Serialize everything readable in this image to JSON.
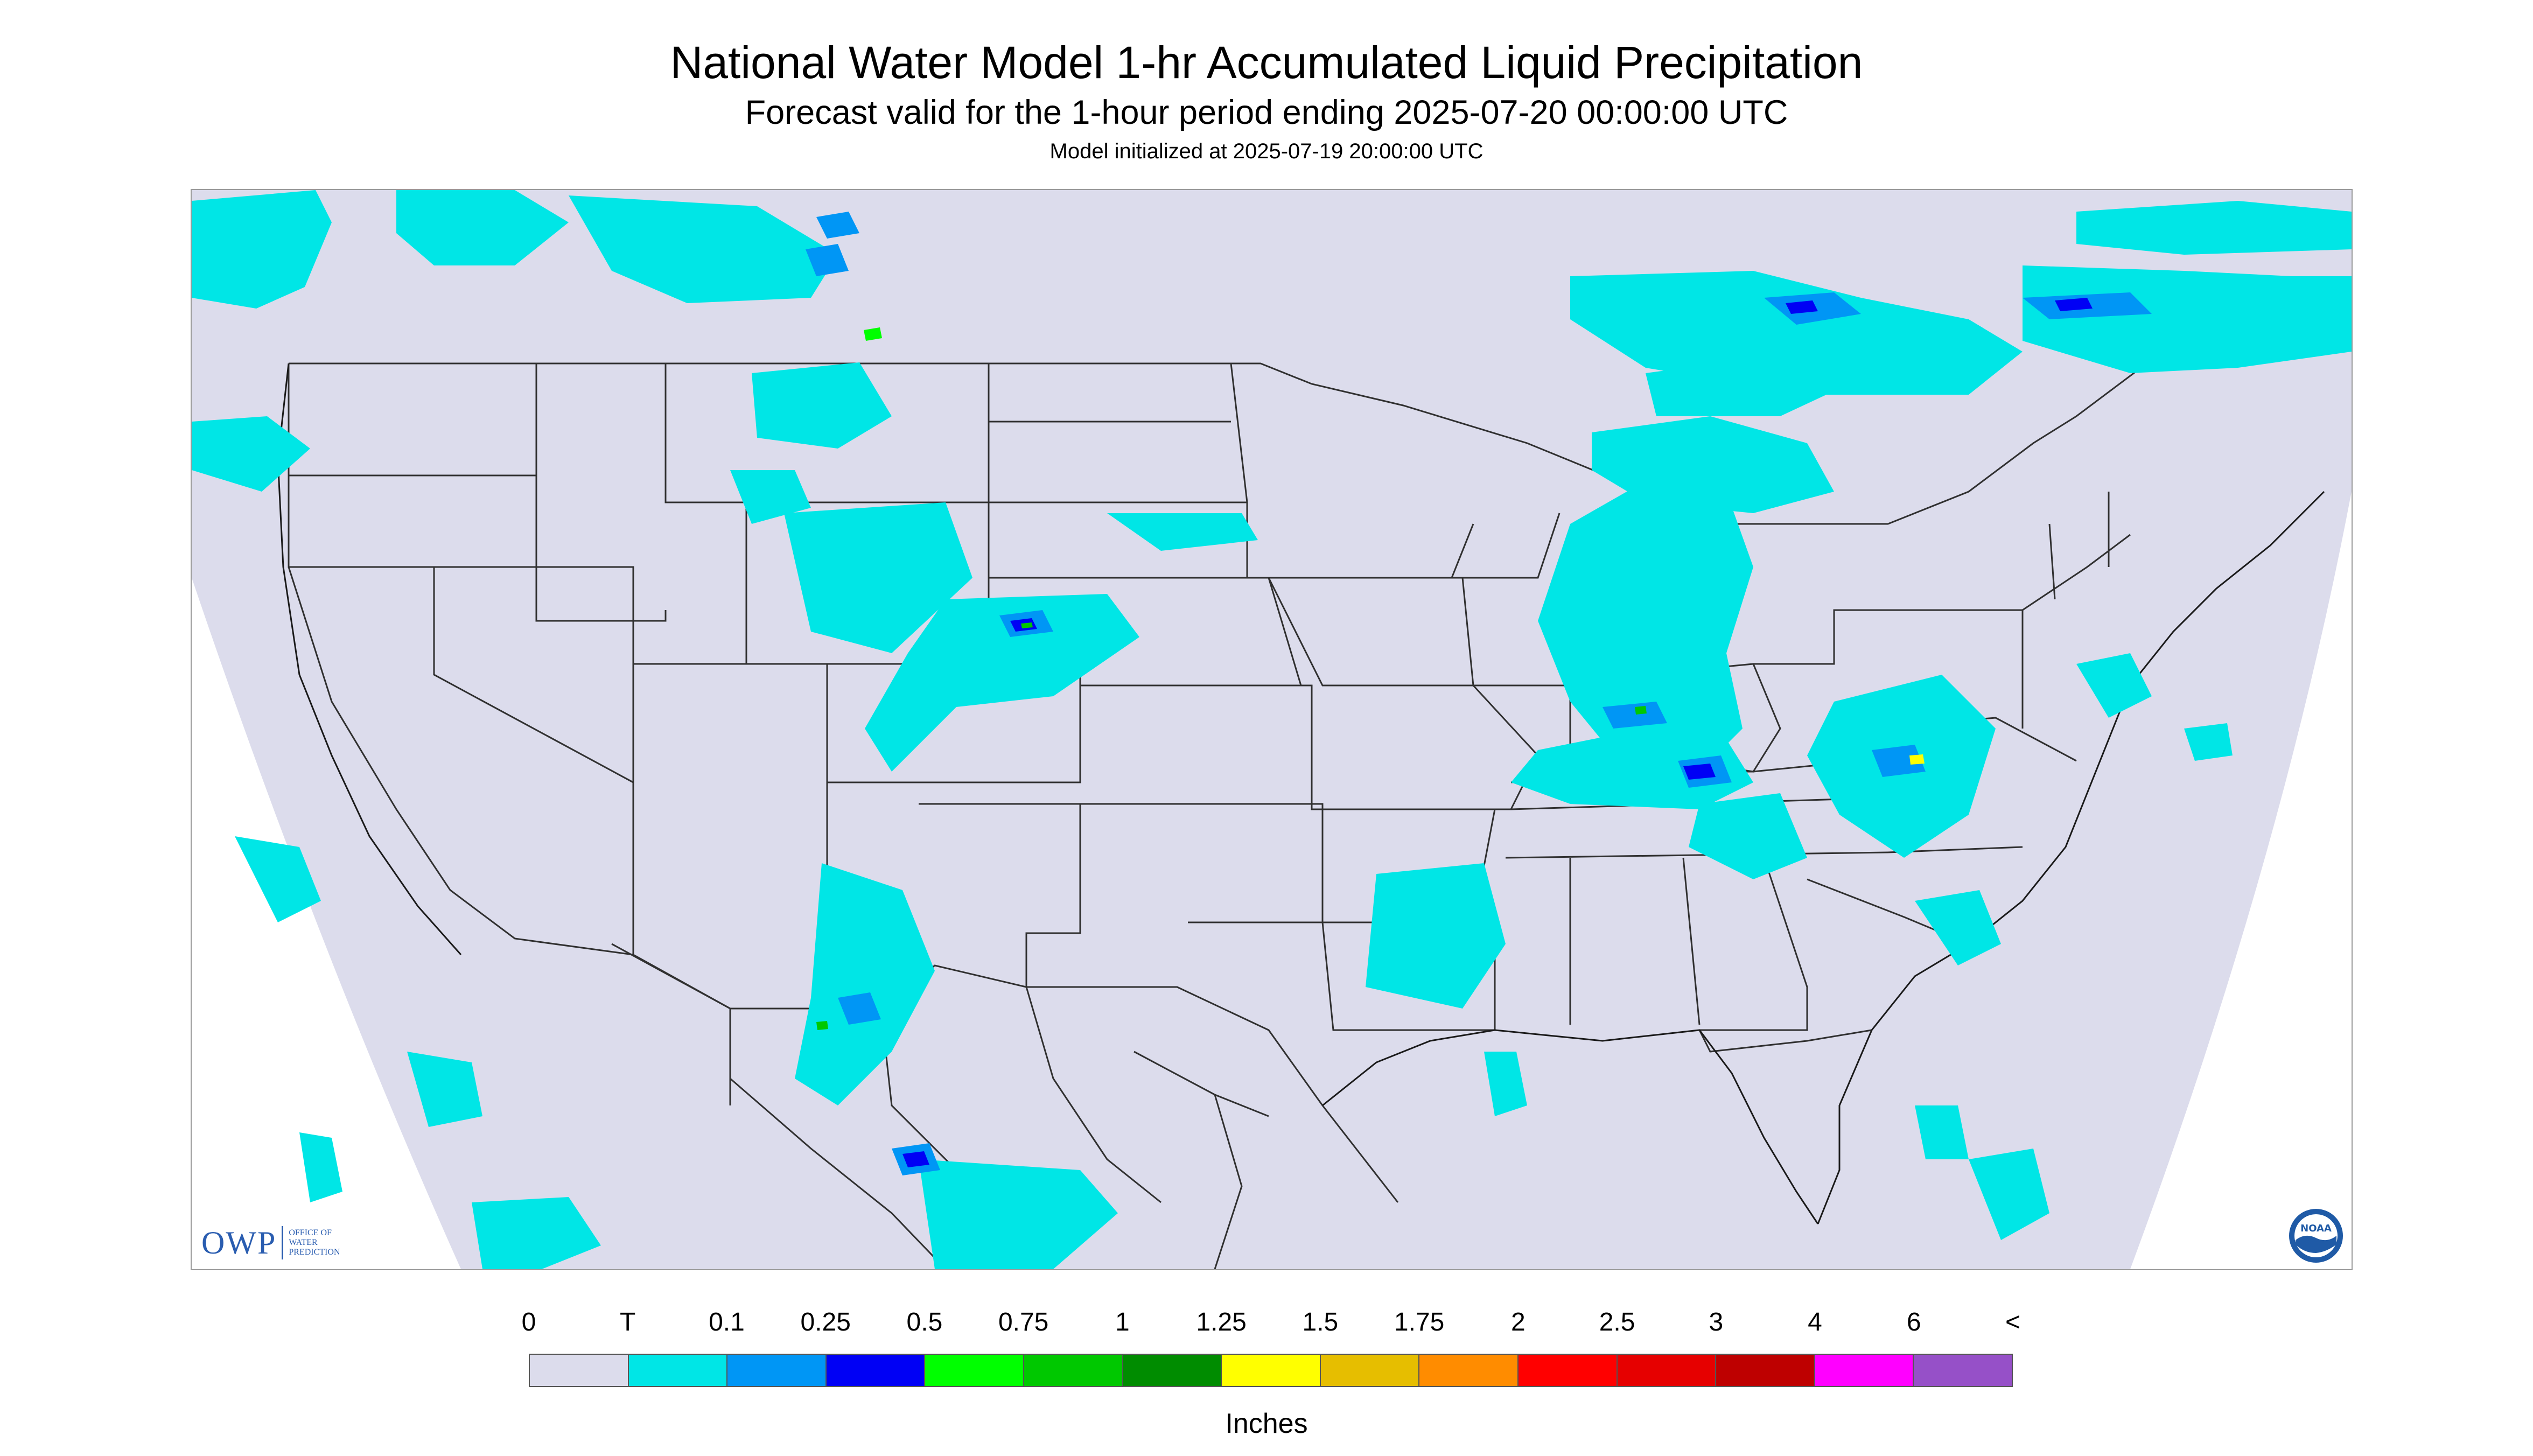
{
  "header": {
    "title": "National Water Model 1-hr Accumulated Liquid Precipitation",
    "subtitle": "Forecast valid for the 1-hour period ending 2025-07-20 00:00:00 UTC",
    "init": "Model initialized at 2025-07-19 20:00:00 UTC"
  },
  "map": {
    "background_color": "#ffffff",
    "domain_color": "#dcdcec",
    "boundary_color": "#303030",
    "logos": {
      "owp": {
        "letters": "OWP",
        "subtext": "OFFICE OF WATER PREDICTION"
      },
      "noaa": {
        "text": "NOAA"
      }
    }
  },
  "legend": {
    "labels": [
      "0",
      "T",
      "0.1",
      "0.25",
      "0.5",
      "0.75",
      "1",
      "1.25",
      "1.5",
      "1.75",
      "2",
      "2.5",
      "3",
      "4",
      "6",
      "<"
    ],
    "colors": [
      "#dcdcec",
      "#00e6e6",
      "#0096f5",
      "#0000f5",
      "#00ff00",
      "#00c800",
      "#008c00",
      "#ffff00",
      "#e6be00",
      "#ff8c00",
      "#ff0000",
      "#e60000",
      "#be0000",
      "#ff00ff",
      "#9650c8"
    ],
    "units": "Inches"
  }
}
